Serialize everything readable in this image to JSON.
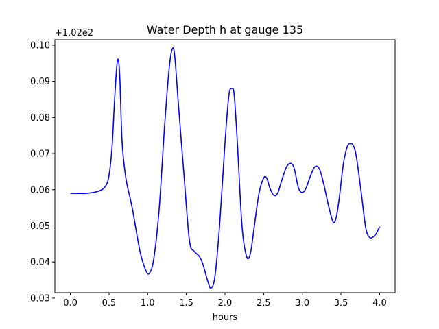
{
  "chart_data": {
    "type": "line",
    "title": "Water Depth h at gauge 135",
    "xlabel": "hours",
    "ylabel": "",
    "offset_label": "+1.02e2",
    "xlim": [
      -0.2,
      4.2
    ],
    "ylim": [
      0.0315,
      0.1015
    ],
    "xticks": [
      0.0,
      0.5,
      1.0,
      1.5,
      2.0,
      2.5,
      3.0,
      3.5,
      4.0
    ],
    "xtick_labels": [
      "0.0",
      "0.5",
      "1.0",
      "1.5",
      "2.0",
      "2.5",
      "3.0",
      "3.5",
      "4.0"
    ],
    "yticks": [
      0.03,
      0.04,
      0.05,
      0.06,
      0.07,
      0.08,
      0.09,
      0.1
    ],
    "ytick_labels": [
      "0.03",
      "0.04",
      "0.05",
      "0.06",
      "0.07",
      "0.08",
      "0.09",
      "0.10"
    ],
    "grid": false,
    "series": [
      {
        "color": "#0000ff",
        "x": [
          0.0,
          0.2,
          0.35,
          0.45,
          0.5,
          0.54,
          0.57,
          0.6,
          0.62,
          0.64,
          0.67,
          0.72,
          0.8,
          0.9,
          0.97,
          1.02,
          1.08,
          1.15,
          1.22,
          1.28,
          1.32,
          1.35,
          1.4,
          1.47,
          1.54,
          1.6,
          1.67,
          1.72,
          1.78,
          1.82,
          1.87,
          1.93,
          2.0,
          2.05,
          2.09,
          2.12,
          2.16,
          2.22,
          2.28,
          2.33,
          2.38,
          2.44,
          2.5,
          2.54,
          2.58,
          2.63,
          2.68,
          2.74,
          2.8,
          2.86,
          2.9,
          2.95,
          3.0,
          3.05,
          3.1,
          3.16,
          3.22,
          3.28,
          3.34,
          3.4,
          3.44,
          3.48,
          3.53,
          3.58,
          3.62,
          3.66,
          3.7,
          3.76,
          3.82,
          3.87,
          3.92,
          3.96,
          4.0
        ],
        "y": [
          0.059,
          0.059,
          0.0595,
          0.0608,
          0.064,
          0.072,
          0.084,
          0.094,
          0.096,
          0.091,
          0.073,
          0.063,
          0.055,
          0.043,
          0.038,
          0.0368,
          0.041,
          0.055,
          0.078,
          0.094,
          0.099,
          0.097,
          0.083,
          0.064,
          0.046,
          0.043,
          0.0415,
          0.039,
          0.0345,
          0.0328,
          0.036,
          0.05,
          0.073,
          0.086,
          0.088,
          0.086,
          0.073,
          0.05,
          0.0415,
          0.0425,
          0.05,
          0.059,
          0.0632,
          0.0632,
          0.0605,
          0.0585,
          0.059,
          0.063,
          0.0665,
          0.0672,
          0.0655,
          0.0605,
          0.0592,
          0.0605,
          0.0635,
          0.0663,
          0.0658,
          0.0613,
          0.0555,
          0.051,
          0.0525,
          0.058,
          0.067,
          0.0718,
          0.0728,
          0.0722,
          0.069,
          0.0595,
          0.0495,
          0.0468,
          0.047,
          0.048,
          0.0498
        ]
      }
    ]
  }
}
